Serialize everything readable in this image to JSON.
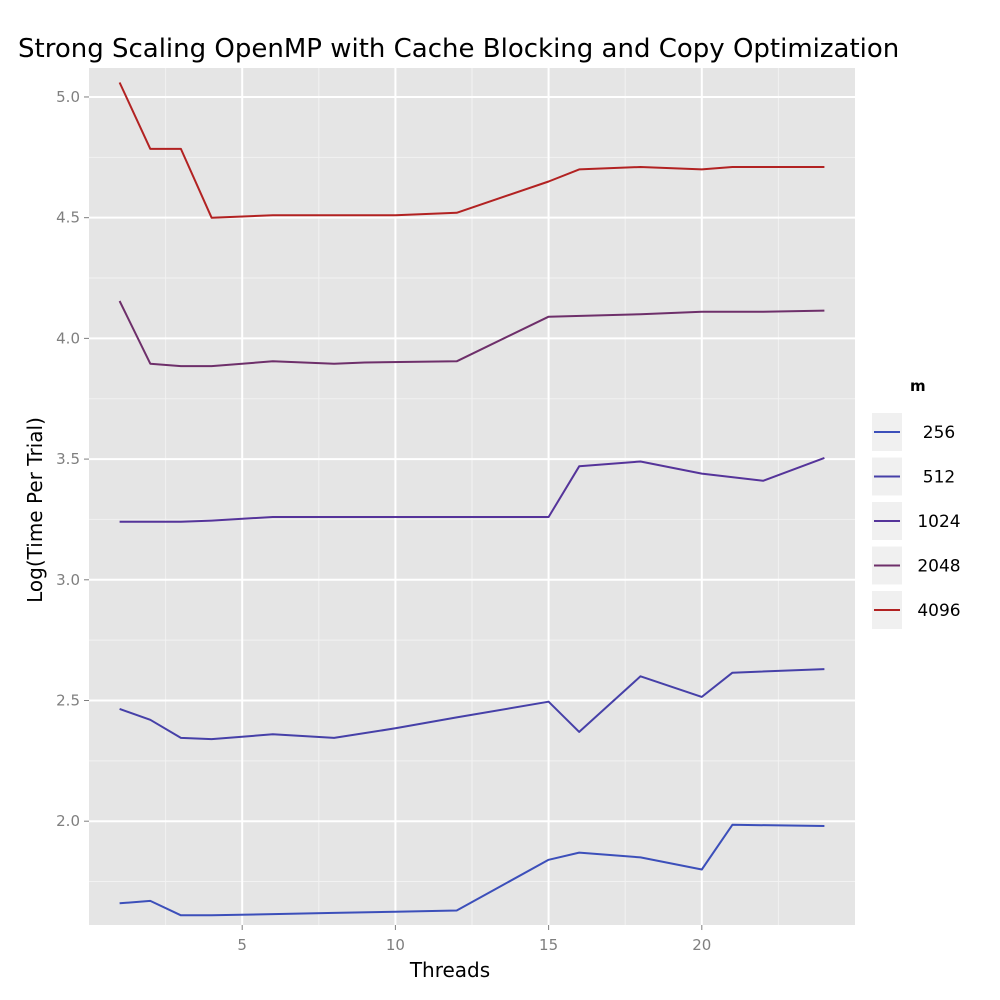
{
  "chart_data": {
    "type": "line",
    "title": "Strong Scaling OpenMP with Cache Blocking and Copy Optimization",
    "xlabel": "Threads",
    "ylabel": "Log(Time Per Trial)",
    "xlim": [
      0,
      25
    ],
    "ylim": [
      1.57,
      5.12
    ],
    "x_ticks": [
      5,
      10,
      15,
      20
    ],
    "y_ticks": [
      2.0,
      2.5,
      3.0,
      3.5,
      4.0,
      4.5,
      5.0
    ],
    "grid": true,
    "legend": {
      "title": "m",
      "position": "right"
    },
    "series": [
      {
        "name": "256",
        "color": "#3c4fba",
        "x": [
          1,
          2,
          3,
          4,
          6,
          8,
          10,
          12,
          15,
          16,
          18,
          20,
          21,
          24
        ],
        "y": [
          1.66,
          1.67,
          1.61,
          1.61,
          1.615,
          1.62,
          1.625,
          1.63,
          1.84,
          1.87,
          1.85,
          1.8,
          1.985,
          1.98
        ]
      },
      {
        "name": "512",
        "color": "#4640a8",
        "x": [
          1,
          2,
          3,
          4,
          6,
          8,
          10,
          12,
          15,
          16,
          18,
          20,
          21,
          24
        ],
        "y": [
          2.465,
          2.42,
          2.345,
          2.34,
          2.36,
          2.345,
          2.385,
          2.43,
          2.495,
          2.37,
          2.6,
          2.515,
          2.615,
          2.63
        ]
      },
      {
        "name": "1024",
        "color": "#55349a",
        "x": [
          1,
          2,
          3,
          4,
          6,
          8,
          10,
          12,
          15,
          16,
          18,
          20,
          22,
          24
        ],
        "y": [
          3.24,
          3.24,
          3.24,
          3.245,
          3.26,
          3.26,
          3.26,
          3.26,
          3.26,
          3.47,
          3.49,
          3.44,
          3.41,
          3.505
        ]
      },
      {
        "name": "2048",
        "color": "#6e2f6a",
        "x": [
          1,
          2,
          3,
          4,
          6,
          8,
          9,
          12,
          15,
          18,
          20,
          22,
          24
        ],
        "y": [
          4.155,
          3.895,
          3.885,
          3.885,
          3.905,
          3.895,
          3.9,
          3.905,
          4.09,
          4.1,
          4.11,
          4.11,
          4.115
        ]
      },
      {
        "name": "4096",
        "color": "#b22222",
        "x": [
          1,
          2,
          3,
          4,
          6,
          8,
          10,
          12,
          15,
          16,
          18,
          20,
          21,
          24
        ],
        "y": [
          5.06,
          4.785,
          4.785,
          4.5,
          4.51,
          4.51,
          4.51,
          4.52,
          4.65,
          4.7,
          4.71,
          4.7,
          4.71,
          4.71
        ]
      }
    ]
  },
  "colors": {
    "panel_background": "#e5e5e5",
    "grid_major": "#ffffff",
    "grid_minor": "#f2f2f2",
    "legend_key_background": "#f0f0f0"
  }
}
